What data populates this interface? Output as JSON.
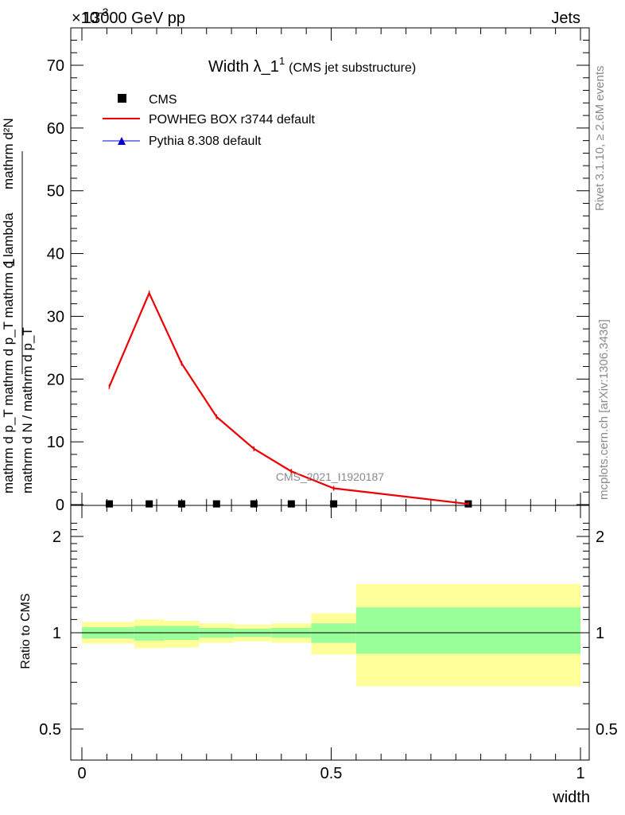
{
  "header": {
    "left": "13000 GeV pp",
    "right": "Jets",
    "exponent_base": "×10",
    "exponent_power": "-3"
  },
  "title": {
    "main": "Width λ_1",
    "super": "1",
    "sub": "(CMS jet substructure)"
  },
  "side": {
    "rivet": "Rivet 3.1.10, ≥ 2.6M events",
    "mcplots": "mcplots.cern.ch [arXiv:1306.3436]"
  },
  "watermark": "CMS_2021_I1920187",
  "legend": [
    {
      "label": "CMS",
      "kind": "marker-square",
      "color": "#000000"
    },
    {
      "label": "POWHEG BOX r3744 default",
      "kind": "line",
      "color": "#ee0000"
    },
    {
      "label": "Pythia 8.308 default",
      "kind": "line-triangle",
      "color": "#0000cc"
    }
  ],
  "axes": {
    "upper_ylabel_top": "mathrm d²N",
    "upper_ylabel_bottom": "mathrm d p_T mathrm d p_T mathrm d lambda",
    "upper_ylabel_frac_num": "1",
    "upper_ylabel_frac_den": "mathrm d N / mathrm d p_T",
    "lower_ylabel": "Ratio to CMS",
    "xlabel": "width"
  },
  "chart_data": {
    "type": "line",
    "upper": {
      "xlim": [
        0,
        1
      ],
      "ylim": [
        0,
        76
      ],
      "yticks": [
        0,
        10,
        20,
        30,
        40,
        50,
        60,
        70
      ],
      "ytick_labels": [
        "0",
        "10",
        "20",
        "30",
        "40",
        "50",
        "60",
        "70"
      ],
      "series": [
        {
          "name": "CMS",
          "kind": "points",
          "x": [
            0.055,
            0.135,
            0.2,
            0.27,
            0.345,
            0.42,
            0.505,
            0.775
          ],
          "y": [
            0.05,
            0.05,
            0.05,
            0.05,
            0.05,
            0.05,
            0.05,
            0.05
          ]
        },
        {
          "name": "POWHEG BOX r3744 default",
          "kind": "line",
          "x": [
            0.055,
            0.135,
            0.2,
            0.27,
            0.345,
            0.42,
            0.505,
            0.775
          ],
          "y": [
            18.8,
            33.7,
            22.5,
            14.0,
            8.9,
            5.3,
            2.6,
            0.1
          ]
        }
      ]
    },
    "lower": {
      "xlim": [
        0,
        1
      ],
      "ylim": [
        0.38,
        2.3
      ],
      "log": true,
      "yticks": [
        0.5,
        1,
        2
      ],
      "ytick_labels": [
        "0.5",
        "1",
        "2"
      ],
      "xticks": [
        0,
        0.5,
        1
      ],
      "xtick_labels": [
        "0",
        "0.5",
        "1"
      ],
      "reference": 1,
      "bands": [
        {
          "x0": 0.0,
          "x1": 0.105,
          "inner": [
            0.96,
            1.04
          ],
          "outer": [
            0.925,
            1.08
          ]
        },
        {
          "x0": 0.105,
          "x1": 0.165,
          "inner": [
            0.945,
            1.05
          ],
          "outer": [
            0.895,
            1.1
          ]
        },
        {
          "x0": 0.165,
          "x1": 0.235,
          "inner": [
            0.95,
            1.05
          ],
          "outer": [
            0.9,
            1.09
          ]
        },
        {
          "x0": 0.235,
          "x1": 0.305,
          "inner": [
            0.965,
            1.035
          ],
          "outer": [
            0.93,
            1.07
          ]
        },
        {
          "x0": 0.305,
          "x1": 0.38,
          "inner": [
            0.97,
            1.03
          ],
          "outer": [
            0.94,
            1.06
          ]
        },
        {
          "x0": 0.38,
          "x1": 0.46,
          "inner": [
            0.965,
            1.035
          ],
          "outer": [
            0.93,
            1.07
          ]
        },
        {
          "x0": 0.46,
          "x1": 0.55,
          "inner": [
            0.93,
            1.07
          ],
          "outer": [
            0.855,
            1.15
          ]
        },
        {
          "x0": 0.55,
          "x1": 1.0,
          "inner": [
            0.86,
            1.2
          ],
          "outer": [
            0.68,
            1.42
          ]
        }
      ],
      "colors": {
        "inner": "#99ff99",
        "outer": "#ffff99"
      }
    }
  }
}
